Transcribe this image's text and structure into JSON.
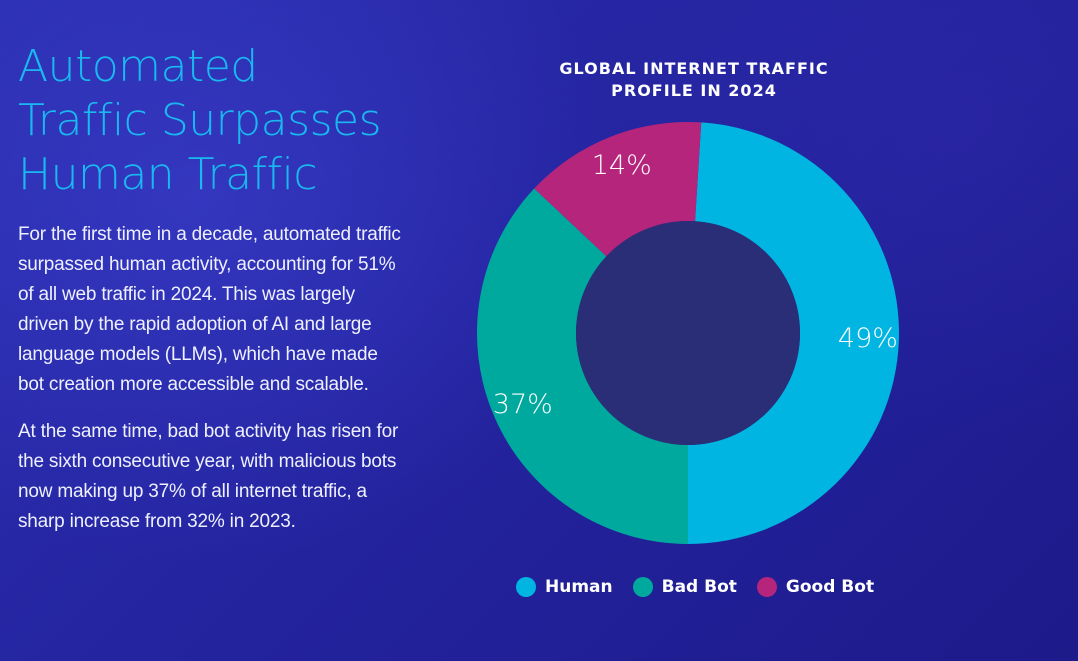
{
  "headline": {
    "line1": "Automated",
    "line2": "Traffic Surpasses",
    "line3": "Human Traffic"
  },
  "paragraphs": {
    "p1": "For the first time in a decade, automated traffic surpassed human activity, accounting for 51% of all web traffic in 2024. This was largely driven by the rapid adoption of AI and large language models (LLMs), which have made bot creation more accessible and scalable.",
    "p2": "At the same time, bad bot activity has risen for the sixth consecutive year, with malicious bots now making up 37% of all internet traffic, a sharp increase from 32% in 2023."
  },
  "colors": {
    "accent": "#19b9f0",
    "human": "#00b5e2",
    "bad_bot": "#00a99d",
    "good_bot": "#b5257c",
    "hole": "#2a2e77"
  },
  "chart_data": {
    "type": "pie",
    "title_line1": "GLOBAL INTERNET TRAFFIC",
    "title_line2": "PROFILE IN 2024",
    "categories": [
      "Human",
      "Bad Bot",
      "Good Bot"
    ],
    "values": [
      49,
      37,
      14
    ],
    "value_labels": [
      "49%",
      "37%",
      "14%"
    ],
    "legend_position": "bottom"
  }
}
